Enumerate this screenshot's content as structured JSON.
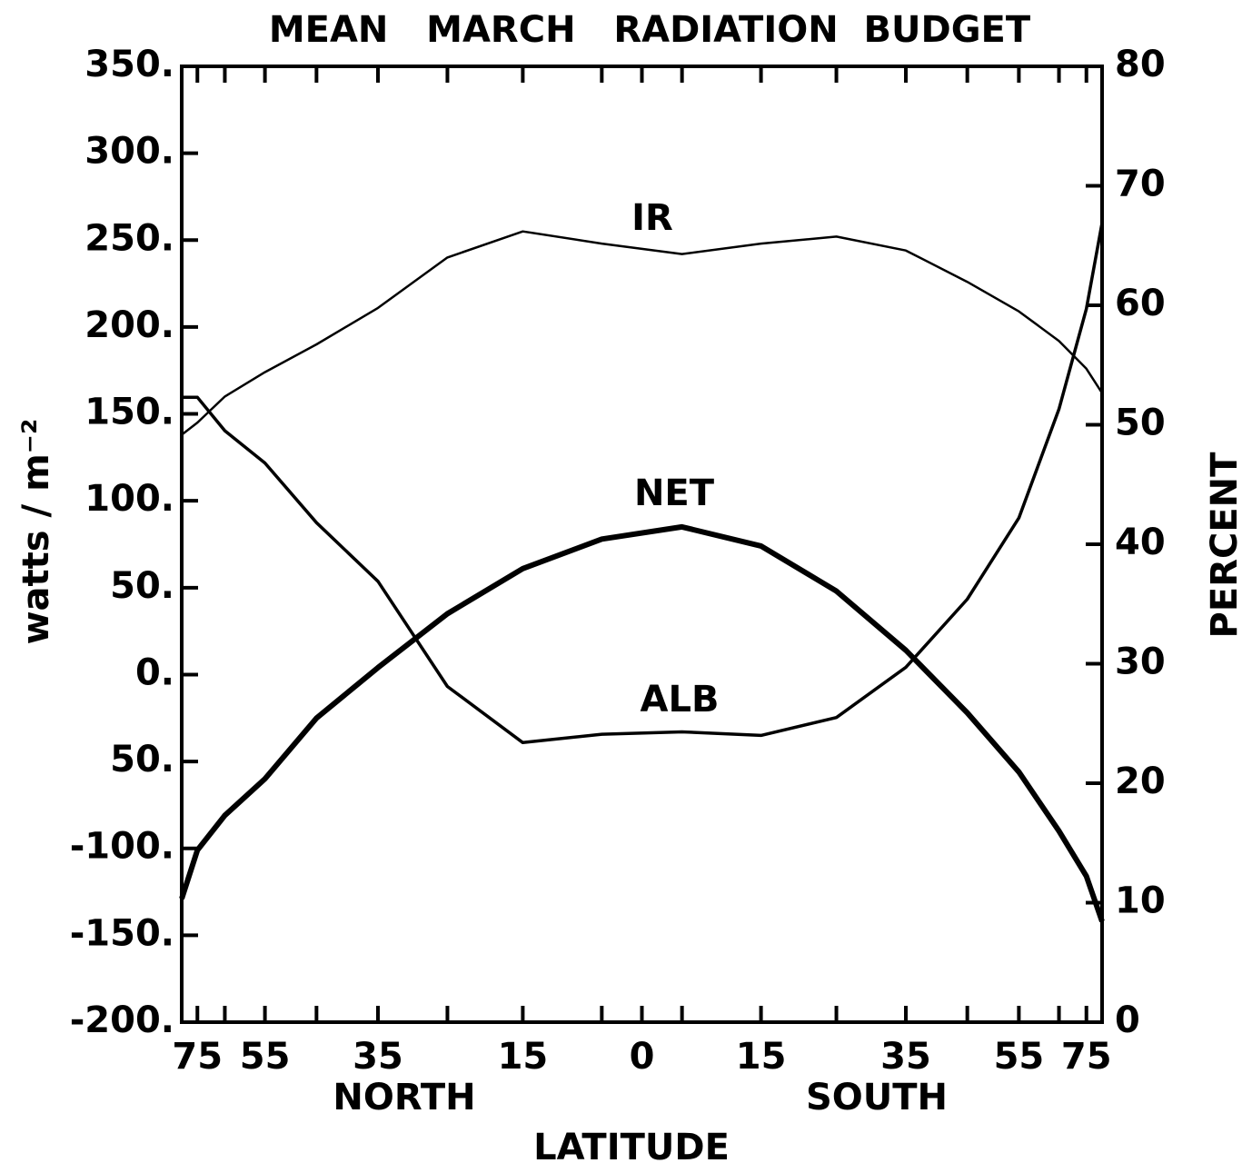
{
  "chart_data": {
    "type": "line",
    "title": "MEAN   MARCH   RADIATION  BUDGET",
    "xlabel": "LATITUDE",
    "hemisphere_labels": [
      "NORTH",
      "SOUTH"
    ],
    "ylabel": "watts / m⁻²",
    "y2label": "PERCENT",
    "annotations": [
      "IR",
      "NET",
      "ALB"
    ],
    "xscale": "sine",
    "xlim": [
      -90,
      90
    ],
    "xticks": [
      {
        "value": -75,
        "label": "75"
      },
      {
        "value": -55,
        "label": "55"
      },
      {
        "value": -35,
        "label": "35"
      },
      {
        "value": -15,
        "label": "15"
      },
      0,
      15,
      35,
      55,
      75
    ],
    "xminorticks": [
      -65,
      -45,
      -25,
      -5,
      5,
      25,
      45,
      65
    ],
    "ylim": [
      -200,
      350
    ],
    "yticks": [
      {
        "value": 350,
        "label": "350."
      },
      {
        "value": 300,
        "label": "300."
      },
      {
        "value": 250,
        "label": "250."
      },
      {
        "value": 200,
        "label": "200."
      },
      {
        "value": 150,
        "label": "150."
      },
      {
        "value": 100,
        "label": "100."
      },
      {
        "value": 50,
        "label": "50."
      },
      {
        "value": 0,
        "label": "0."
      },
      {
        "value": -50,
        "label": "50."
      },
      {
        "value": -100,
        "label": "-100."
      },
      {
        "value": -150,
        "label": "-150."
      },
      {
        "value": -200,
        "label": "-200."
      }
    ],
    "y2lim": [
      0,
      80
    ],
    "y2ticks": [
      0,
      10,
      20,
      30,
      40,
      50,
      60,
      70,
      80
    ],
    "x": [
      -90,
      -75,
      -65,
      -55,
      -45,
      -35,
      -25,
      -15,
      -5,
      5,
      15,
      25,
      35,
      45,
      55,
      65,
      75,
      90
    ],
    "series": [
      {
        "name": "IR",
        "color": "#000000",
        "values": [
          138,
          145,
          160,
          174,
          190,
          211,
          240,
          255,
          248,
          242,
          248,
          252,
          244,
          226,
          209,
          192,
          176,
          162
        ]
      },
      {
        "name": "NET",
        "color": "#000000",
        "values": [
          -129,
          -101,
          -81,
          -60,
          -25,
          4,
          35,
          61,
          78,
          85,
          74,
          48,
          14,
          -22,
          -56,
          -90,
          -116,
          -142
        ]
      },
      {
        "name": "ALB",
        "color": "#000000",
        "axis": "y2",
        "values": [
          52.3,
          52.3,
          49.5,
          46.8,
          41.8,
          36.9,
          28.1,
          23.4,
          24.1,
          24.3,
          24.0,
          25.5,
          29.7,
          35.4,
          42.2,
          51.3,
          59.7,
          66.9
        ]
      }
    ]
  }
}
